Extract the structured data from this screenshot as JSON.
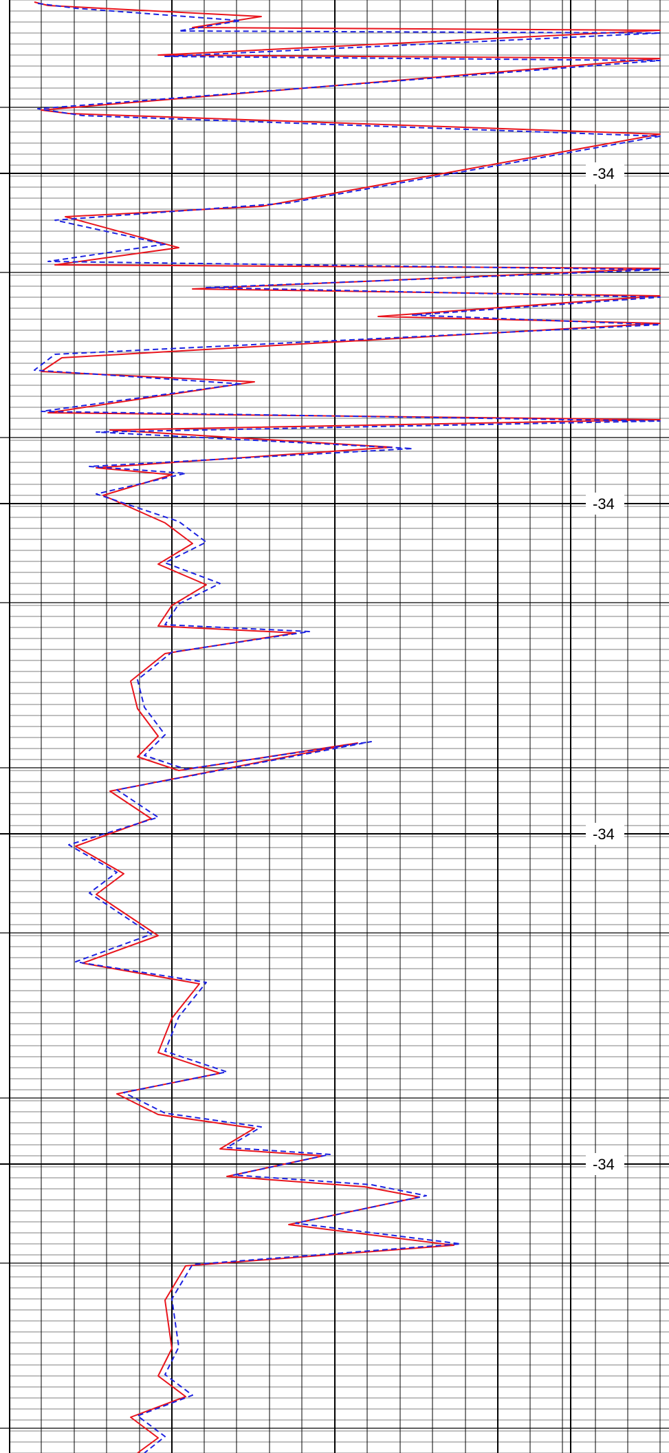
{
  "chart_data": {
    "type": "line",
    "title": "",
    "xlabel": "",
    "ylabel": "",
    "depth_labels": [
      "-34",
      "-34",
      "-34",
      "-34"
    ],
    "grid": true,
    "colors": {
      "series_red": "#e8141c",
      "series_blue": "#1c22e0",
      "crossover_fill": "#555555",
      "grid": "#000000"
    },
    "series": [
      {
        "style": "solid",
        "color": "#e8141c",
        "points": [
          [
            50,
            3
          ],
          [
            70,
            8
          ],
          [
            380,
            24
          ],
          [
            280,
            40
          ],
          [
            960,
            44
          ],
          [
            230,
            80
          ],
          [
            960,
            85
          ],
          [
            60,
            160
          ],
          [
            100,
            165
          ],
          [
            960,
            195
          ],
          [
            380,
            300
          ],
          [
            95,
            315
          ],
          [
            260,
            360
          ],
          [
            80,
            385
          ],
          [
            960,
            390
          ],
          [
            280,
            420
          ],
          [
            960,
            430
          ],
          [
            550,
            460
          ],
          [
            960,
            470
          ],
          [
            90,
            520
          ],
          [
            60,
            540
          ],
          [
            370,
            555
          ],
          [
            70,
            600
          ],
          [
            960,
            610
          ],
          [
            160,
            625
          ],
          [
            570,
            650
          ],
          [
            140,
            680
          ],
          [
            250,
            690
          ],
          [
            150,
            720
          ],
          [
            240,
            760
          ],
          [
            280,
            790
          ],
          [
            230,
            820
          ],
          [
            300,
            850
          ],
          [
            250,
            880
          ],
          [
            230,
            910
          ],
          [
            430,
            920
          ],
          [
            240,
            950
          ],
          [
            190,
            990
          ],
          [
            200,
            1030
          ],
          [
            230,
            1070
          ],
          [
            200,
            1100
          ],
          [
            260,
            1120
          ],
          [
            520,
            1080
          ],
          [
            160,
            1150
          ],
          [
            220,
            1190
          ],
          [
            110,
            1230
          ],
          [
            180,
            1270
          ],
          [
            140,
            1300
          ],
          [
            230,
            1360
          ],
          [
            120,
            1400
          ],
          [
            290,
            1430
          ],
          [
            250,
            1480
          ],
          [
            230,
            1530
          ],
          [
            320,
            1560
          ],
          [
            170,
            1590
          ],
          [
            230,
            1620
          ],
          [
            370,
            1640
          ],
          [
            320,
            1670
          ],
          [
            470,
            1680
          ],
          [
            330,
            1710
          ],
          [
            530,
            1725
          ],
          [
            610,
            1740
          ],
          [
            420,
            1780
          ],
          [
            660,
            1810
          ],
          [
            270,
            1840
          ],
          [
            240,
            1890
          ],
          [
            250,
            1960
          ],
          [
            230,
            2000
          ],
          [
            270,
            2030
          ],
          [
            190,
            2060
          ],
          [
            230,
            2090
          ],
          [
            200,
            2112
          ]
        ]
      },
      {
        "style": "dashed",
        "color": "#1c22e0",
        "points": [
          [
            55,
            5
          ],
          [
            110,
            12
          ],
          [
            350,
            30
          ],
          [
            260,
            45
          ],
          [
            960,
            48
          ],
          [
            240,
            82
          ],
          [
            960,
            88
          ],
          [
            55,
            158
          ],
          [
            120,
            168
          ],
          [
            960,
            198
          ],
          [
            420,
            295
          ],
          [
            80,
            320
          ],
          [
            240,
            355
          ],
          [
            70,
            380
          ],
          [
            960,
            392
          ],
          [
            300,
            418
          ],
          [
            960,
            432
          ],
          [
            600,
            458
          ],
          [
            960,
            472
          ],
          [
            80,
            515
          ],
          [
            50,
            538
          ],
          [
            350,
            558
          ],
          [
            60,
            598
          ],
          [
            960,
            612
          ],
          [
            140,
            628
          ],
          [
            600,
            652
          ],
          [
            130,
            678
          ],
          [
            270,
            688
          ],
          [
            140,
            718
          ],
          [
            260,
            758
          ],
          [
            300,
            788
          ],
          [
            240,
            818
          ],
          [
            320,
            848
          ],
          [
            260,
            878
          ],
          [
            240,
            908
          ],
          [
            450,
            918
          ],
          [
            250,
            948
          ],
          [
            200,
            988
          ],
          [
            210,
            1028
          ],
          [
            240,
            1068
          ],
          [
            210,
            1098
          ],
          [
            270,
            1118
          ],
          [
            540,
            1078
          ],
          [
            170,
            1148
          ],
          [
            230,
            1188
          ],
          [
            100,
            1228
          ],
          [
            170,
            1268
          ],
          [
            130,
            1298
          ],
          [
            220,
            1358
          ],
          [
            110,
            1398
          ],
          [
            300,
            1428
          ],
          [
            260,
            1478
          ],
          [
            240,
            1528
          ],
          [
            330,
            1558
          ],
          [
            180,
            1588
          ],
          [
            240,
            1618
          ],
          [
            380,
            1638
          ],
          [
            330,
            1668
          ],
          [
            480,
            1678
          ],
          [
            340,
            1708
          ],
          [
            540,
            1722
          ],
          [
            620,
            1738
          ],
          [
            430,
            1778
          ],
          [
            670,
            1808
          ],
          [
            280,
            1838
          ],
          [
            250,
            1888
          ],
          [
            260,
            1958
          ],
          [
            240,
            1998
          ],
          [
            280,
            2028
          ],
          [
            200,
            2058
          ],
          [
            240,
            2088
          ],
          [
            210,
            2112
          ]
        ]
      }
    ]
  }
}
